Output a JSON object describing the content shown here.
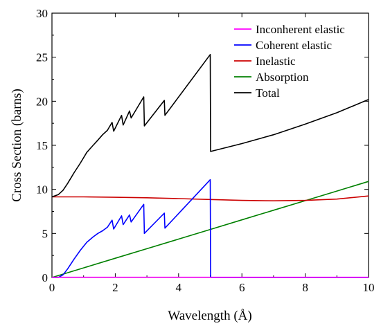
{
  "chart_data": {
    "type": "line",
    "title": "",
    "xlabel": "Wavelength (Å)",
    "ylabel": "Cross Section (barns)",
    "xlim": [
      0,
      10
    ],
    "ylim": [
      0,
      30
    ],
    "xticks": [
      0,
      2,
      4,
      6,
      8,
      10
    ],
    "yticks": [
      0,
      5,
      10,
      15,
      20,
      25,
      30
    ],
    "grid": false,
    "legend_position": "top-right",
    "series": [
      {
        "name": "Inconherent elastic",
        "color": "#ff00ff",
        "x": [
          0,
          10
        ],
        "y": [
          0.02,
          0.02
        ]
      },
      {
        "name": "Coherent elastic",
        "color": "#0000ff",
        "x": [
          0,
          0.2,
          0.35,
          0.5,
          0.7,
          0.9,
          1.1,
          1.3,
          1.45,
          1.6,
          1.75,
          1.9,
          1.95,
          2.2,
          2.25,
          2.45,
          2.5,
          2.9,
          2.92,
          3.55,
          3.57,
          5.0,
          5.01,
          10
        ],
        "y": [
          0,
          0,
          0.3,
          1.0,
          2.1,
          3.1,
          4.0,
          4.6,
          5.0,
          5.3,
          5.7,
          6.5,
          5.5,
          7.0,
          6.0,
          7.1,
          6.3,
          8.3,
          5.0,
          7.3,
          5.6,
          11.1,
          0,
          0
        ]
      },
      {
        "name": "Inelastic",
        "color": "#cc0000",
        "x": [
          0,
          1,
          2,
          3,
          4,
          5,
          6,
          7,
          8,
          9,
          10
        ],
        "y": [
          9.15,
          9.15,
          9.1,
          9.05,
          8.95,
          8.85,
          8.75,
          8.7,
          8.75,
          8.9,
          9.25
        ]
      },
      {
        "name": "Absorption",
        "color": "#008000",
        "x": [
          0,
          1,
          2,
          3,
          4,
          5,
          6,
          7,
          8,
          9,
          10
        ],
        "y": [
          0,
          1.09,
          2.18,
          3.27,
          4.36,
          5.45,
          6.54,
          7.63,
          8.72,
          9.81,
          10.9
        ]
      },
      {
        "name": "Total",
        "color": "#000000",
        "x": [
          0,
          0.2,
          0.35,
          0.5,
          0.7,
          0.9,
          1.1,
          1.3,
          1.45,
          1.6,
          1.75,
          1.9,
          1.95,
          2.2,
          2.25,
          2.45,
          2.5,
          2.9,
          2.92,
          3.55,
          3.57,
          5.0,
          5.01,
          6,
          7,
          8,
          9,
          10
        ],
        "y": [
          9.15,
          9.4,
          9.9,
          10.7,
          11.9,
          13.0,
          14.2,
          15.0,
          15.6,
          16.2,
          16.7,
          17.6,
          16.6,
          18.4,
          17.3,
          18.9,
          18.1,
          20.5,
          17.2,
          20.1,
          18.4,
          25.3,
          14.3,
          15.2,
          16.2,
          17.4,
          18.7,
          20.2
        ]
      }
    ]
  }
}
